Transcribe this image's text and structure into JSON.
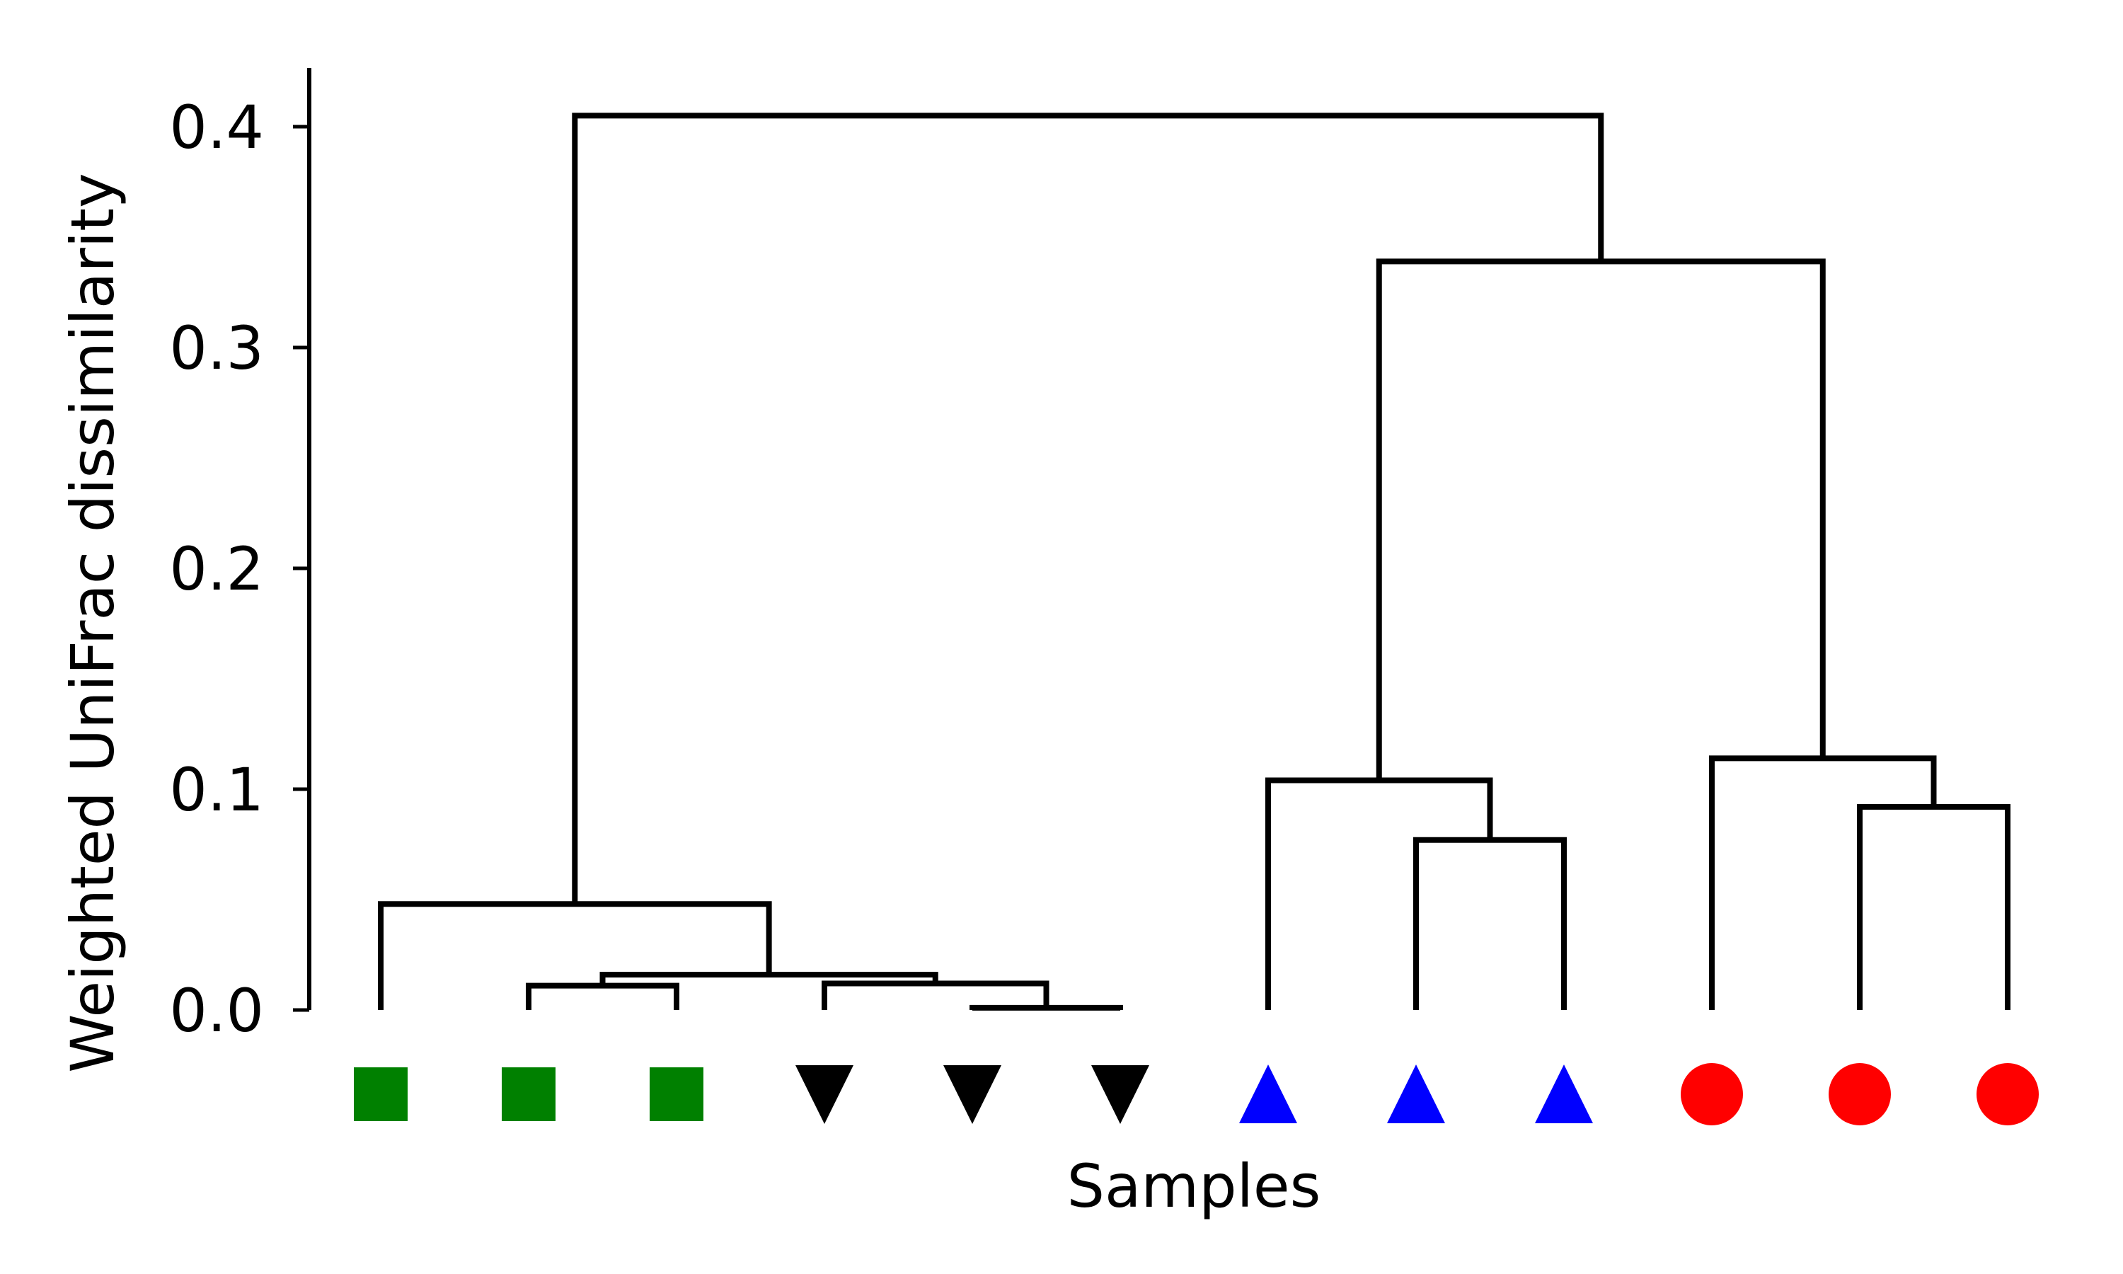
{
  "chart_data": {
    "type": "dendrogram",
    "xlabel": "Samples",
    "ylabel": "Weighted UniFrac dissimilarity",
    "ylim": [
      0,
      0.42
    ],
    "yticks": [
      "0.0",
      "0.1",
      "0.2",
      "0.3",
      "0.4"
    ],
    "grid": false,
    "leaves": [
      {
        "marker": "square",
        "color": "#008000"
      },
      {
        "marker": "square",
        "color": "#008000"
      },
      {
        "marker": "square",
        "color": "#008000"
      },
      {
        "marker": "triangle-down",
        "color": "#000000"
      },
      {
        "marker": "triangle-down",
        "color": "#000000"
      },
      {
        "marker": "triangle-down",
        "color": "#000000"
      },
      {
        "marker": "triangle-up",
        "color": "#0000ff"
      },
      {
        "marker": "triangle-up",
        "color": "#0000ff"
      },
      {
        "marker": "triangle-up",
        "color": "#0000ff"
      },
      {
        "marker": "circle",
        "color": "#ff0000"
      },
      {
        "marker": "circle",
        "color": "#ff0000"
      },
      {
        "marker": "circle",
        "color": "#ff0000"
      }
    ],
    "merges": [
      {
        "left": {
          "leaf": 4
        },
        "right": {
          "leaf": 5
        },
        "height": 0.001
      },
      {
        "left": {
          "leaf": 1
        },
        "right": {
          "leaf": 2
        },
        "height": 0.011
      },
      {
        "left": {
          "leaf": 3
        },
        "right": {
          "node": 0
        },
        "height": 0.012
      },
      {
        "left": {
          "node": 1
        },
        "right": {
          "node": 2
        },
        "height": 0.016
      },
      {
        "left": {
          "leaf": 0
        },
        "right": {
          "node": 3
        },
        "height": 0.048
      },
      {
        "left": {
          "leaf": 7
        },
        "right": {
          "leaf": 8
        },
        "height": 0.077
      },
      {
        "left": {
          "leaf": 10
        },
        "right": {
          "leaf": 11
        },
        "height": 0.092
      },
      {
        "left": {
          "leaf": 6
        },
        "right": {
          "node": 5
        },
        "height": 0.104
      },
      {
        "left": {
          "leaf": 9
        },
        "right": {
          "node": 6
        },
        "height": 0.114
      },
      {
        "left": {
          "node": 7
        },
        "right": {
          "node": 8
        },
        "height": 0.339
      },
      {
        "left": {
          "node": 4
        },
        "right": {
          "node": 9
        },
        "height": 0.405
      }
    ]
  }
}
